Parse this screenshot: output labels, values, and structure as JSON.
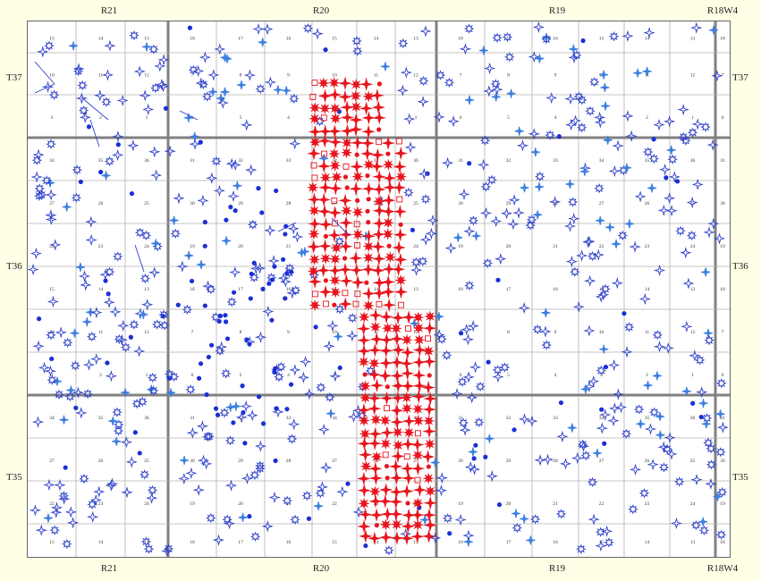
{
  "ranges": [
    {
      "id": "r21",
      "label": "R21"
    },
    {
      "id": "r20",
      "label": "R20"
    },
    {
      "id": "r19",
      "label": "R19"
    },
    {
      "id": "r18w4",
      "label": "R18W4"
    }
  ],
  "townships": [
    {
      "id": "t37",
      "label": "T37"
    },
    {
      "id": "t36",
      "label": "T36"
    },
    {
      "id": "t35",
      "label": "T35"
    }
  ],
  "section_rows": [
    [
      "15",
      "14",
      "13",
      "18",
      "17",
      "16",
      "15",
      "14",
      "13",
      "18",
      "17",
      "16",
      "15",
      "14",
      "13",
      "18"
    ],
    [
      "10",
      "11",
      "12",
      "7",
      "8",
      "9",
      "10",
      "11",
      "12",
      "7",
      "8",
      "9",
      "10",
      "11",
      "12",
      "7"
    ],
    [
      "3",
      "2",
      "1",
      "6",
      "5",
      "4",
      "3",
      "2",
      "1",
      "6",
      "5",
      "4",
      "3",
      "2",
      "1",
      "6"
    ],
    [
      "34",
      "35",
      "36",
      "31",
      "32",
      "33",
      "34",
      "35",
      "36",
      "31",
      "32",
      "33",
      "34",
      "35",
      "36",
      "31"
    ],
    [
      "27",
      "26",
      "25",
      "30",
      "29",
      "28",
      "27",
      "26",
      "25",
      "30",
      "29",
      "28",
      "27",
      "26",
      "25",
      "30"
    ],
    [
      "22",
      "23",
      "24",
      "19",
      "20",
      "21",
      "22",
      "23",
      "24",
      "19",
      "20",
      "21",
      "22",
      "23",
      "24",
      "19"
    ],
    [
      "15",
      "14",
      "13",
      "18",
      "17",
      "16",
      "15",
      "14",
      "13",
      "18",
      "17",
      "16",
      "15",
      "14",
      "13",
      "18"
    ],
    [
      "10",
      "11",
      "12",
      "7",
      "8",
      "9",
      "10",
      "11",
      "12",
      "7",
      "8",
      "9",
      "10",
      "11",
      "12",
      "7"
    ],
    [
      "3",
      "2",
      "1",
      "6",
      "5",
      "4",
      "3",
      "2",
      "1",
      "6",
      "5",
      "4",
      "3",
      "2",
      "1",
      "6"
    ],
    [
      "34",
      "35",
      "36",
      "31",
      "32",
      "33",
      "34",
      "35",
      "36",
      "31",
      "32",
      "33",
      "34",
      "35",
      "36",
      "31"
    ],
    [
      "27",
      "26",
      "25",
      "30",
      "29",
      "28",
      "27",
      "26",
      "25",
      "30",
      "29",
      "28",
      "27",
      "26",
      "25",
      "30"
    ],
    [
      "22",
      "23",
      "24",
      "19",
      "20",
      "21",
      "22",
      "23",
      "24",
      "19",
      "20",
      "21",
      "22",
      "23",
      "24",
      "19"
    ],
    [
      "15",
      "14",
      "13",
      "18",
      "17",
      "16",
      "15",
      "14",
      "13",
      "18",
      "17",
      "16",
      "15",
      "14",
      "13",
      "18"
    ]
  ],
  "symbols": {
    "blue_star": "#2d3fc9",
    "blue_sparkle": "#3d7fe0",
    "red_star": "#e8141e",
    "blue_dot": "#1a2fd6",
    "red_box": "#e8141e"
  }
}
